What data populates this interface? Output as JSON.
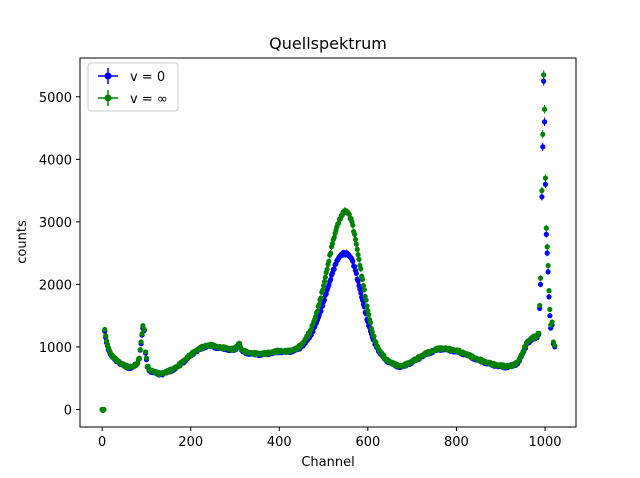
{
  "chart_data": {
    "type": "scatter",
    "title": "Quellspektrum",
    "xlabel": "Channel",
    "ylabel": "counts",
    "xlim": [
      -50,
      1070
    ],
    "ylim": [
      -280,
      5620
    ],
    "xticks": [
      0,
      200,
      400,
      600,
      800,
      1000
    ],
    "yticks": [
      0,
      1000,
      2000,
      3000,
      4000,
      5000
    ],
    "grid": false,
    "legend_position": "top-left",
    "series": [
      {
        "name": "v = 0",
        "color": "#0000ff",
        "points": [
          [
            0,
            0
          ],
          [
            4,
            0
          ],
          [
            6,
            1250
          ],
          [
            8,
            1150
          ],
          [
            12,
            1020
          ],
          [
            16,
            930
          ],
          [
            20,
            870
          ],
          [
            28,
            800
          ],
          [
            36,
            760
          ],
          [
            44,
            720
          ],
          [
            52,
            690
          ],
          [
            60,
            670
          ],
          [
            70,
            680
          ],
          [
            78,
            720
          ],
          [
            84,
            810
          ],
          [
            88,
            1050
          ],
          [
            92,
            1300
          ],
          [
            95,
            1260
          ],
          [
            98,
            900
          ],
          [
            102,
            680
          ],
          [
            108,
            620
          ],
          [
            116,
            600
          ],
          [
            124,
            570
          ],
          [
            132,
            560
          ],
          [
            140,
            580
          ],
          [
            150,
            600
          ],
          [
            160,
            640
          ],
          [
            170,
            680
          ],
          [
            180,
            740
          ],
          [
            190,
            800
          ],
          [
            200,
            870
          ],
          [
            210,
            920
          ],
          [
            220,
            960
          ],
          [
            230,
            1000
          ],
          [
            240,
            1020
          ],
          [
            250,
            1010
          ],
          [
            260,
            990
          ],
          [
            270,
            980
          ],
          [
            280,
            970
          ],
          [
            290,
            950
          ],
          [
            300,
            960
          ],
          [
            310,
            1050
          ],
          [
            315,
            950
          ],
          [
            320,
            920
          ],
          [
            330,
            900
          ],
          [
            340,
            890
          ],
          [
            350,
            880
          ],
          [
            360,
            880
          ],
          [
            370,
            890
          ],
          [
            380,
            900
          ],
          [
            390,
            910
          ],
          [
            400,
            930
          ],
          [
            410,
            920
          ],
          [
            420,
            920
          ],
          [
            430,
            940
          ],
          [
            440,
            960
          ],
          [
            450,
            1000
          ],
          [
            460,
            1080
          ],
          [
            470,
            1180
          ],
          [
            480,
            1320
          ],
          [
            490,
            1500
          ],
          [
            500,
            1720
          ],
          [
            510,
            1950
          ],
          [
            520,
            2180
          ],
          [
            530,
            2380
          ],
          [
            540,
            2480
          ],
          [
            548,
            2500
          ],
          [
            556,
            2480
          ],
          [
            564,
            2400
          ],
          [
            572,
            2220
          ],
          [
            580,
            1980
          ],
          [
            590,
            1680
          ],
          [
            600,
            1400
          ],
          [
            610,
            1160
          ],
          [
            620,
            990
          ],
          [
            630,
            880
          ],
          [
            640,
            800
          ],
          [
            650,
            750
          ],
          [
            660,
            710
          ],
          [
            670,
            690
          ],
          [
            680,
            690
          ],
          [
            690,
            720
          ],
          [
            700,
            760
          ],
          [
            710,
            800
          ],
          [
            720,
            840
          ],
          [
            730,
            880
          ],
          [
            740,
            910
          ],
          [
            750,
            940
          ],
          [
            760,
            960
          ],
          [
            770,
            970
          ],
          [
            780,
            960
          ],
          [
            790,
            940
          ],
          [
            800,
            930
          ],
          [
            810,
            910
          ],
          [
            820,
            880
          ],
          [
            830,
            850
          ],
          [
            840,
            820
          ],
          [
            850,
            790
          ],
          [
            860,
            760
          ],
          [
            870,
            740
          ],
          [
            880,
            720
          ],
          [
            890,
            700
          ],
          [
            900,
            690
          ],
          [
            910,
            680
          ],
          [
            920,
            690
          ],
          [
            930,
            700
          ],
          [
            940,
            760
          ],
          [
            950,
            900
          ],
          [
            960,
            1060
          ],
          [
            970,
            1120
          ],
          [
            980,
            1150
          ],
          [
            986,
            1200
          ],
          [
            990,
            2000
          ],
          [
            993,
            3400
          ],
          [
            995,
            4200
          ],
          [
            997,
            5250
          ],
          [
            999,
            4600
          ],
          [
            1001,
            3600
          ],
          [
            1003,
            2800
          ],
          [
            1005,
            2500
          ],
          [
            1007,
            2200
          ],
          [
            1009,
            1800
          ],
          [
            1011,
            1500
          ],
          [
            1013,
            1300
          ],
          [
            1016,
            1350
          ],
          [
            1019,
            1050
          ],
          [
            1022,
            1000
          ]
        ]
      },
      {
        "name": "v = ∞",
        "color": "#008000",
        "points": [
          [
            0,
            0
          ],
          [
            4,
            0
          ],
          [
            6,
            1280
          ],
          [
            8,
            1180
          ],
          [
            12,
            1040
          ],
          [
            16,
            950
          ],
          [
            20,
            880
          ],
          [
            28,
            810
          ],
          [
            36,
            770
          ],
          [
            44,
            730
          ],
          [
            52,
            700
          ],
          [
            60,
            680
          ],
          [
            70,
            690
          ],
          [
            78,
            730
          ],
          [
            84,
            820
          ],
          [
            88,
            1080
          ],
          [
            92,
            1340
          ],
          [
            95,
            1280
          ],
          [
            98,
            920
          ],
          [
            102,
            690
          ],
          [
            108,
            630
          ],
          [
            116,
            610
          ],
          [
            124,
            580
          ],
          [
            132,
            570
          ],
          [
            140,
            590
          ],
          [
            150,
            610
          ],
          [
            160,
            650
          ],
          [
            170,
            690
          ],
          [
            180,
            750
          ],
          [
            190,
            810
          ],
          [
            200,
            880
          ],
          [
            210,
            930
          ],
          [
            220,
            970
          ],
          [
            230,
            1010
          ],
          [
            240,
            1030
          ],
          [
            250,
            1020
          ],
          [
            260,
            1000
          ],
          [
            270,
            990
          ],
          [
            280,
            980
          ],
          [
            290,
            960
          ],
          [
            300,
            970
          ],
          [
            310,
            1060
          ],
          [
            315,
            960
          ],
          [
            320,
            930
          ],
          [
            330,
            910
          ],
          [
            340,
            900
          ],
          [
            350,
            890
          ],
          [
            360,
            890
          ],
          [
            370,
            900
          ],
          [
            380,
            910
          ],
          [
            390,
            920
          ],
          [
            400,
            940
          ],
          [
            410,
            930
          ],
          [
            420,
            930
          ],
          [
            430,
            950
          ],
          [
            440,
            980
          ],
          [
            450,
            1030
          ],
          [
            460,
            1130
          ],
          [
            470,
            1260
          ],
          [
            480,
            1440
          ],
          [
            490,
            1680
          ],
          [
            500,
            1980
          ],
          [
            510,
            2320
          ],
          [
            520,
            2650
          ],
          [
            530,
            2920
          ],
          [
            540,
            3100
          ],
          [
            548,
            3180
          ],
          [
            556,
            3140
          ],
          [
            564,
            3000
          ],
          [
            572,
            2720
          ],
          [
            580,
            2400
          ],
          [
            590,
            1980
          ],
          [
            600,
            1580
          ],
          [
            610,
            1240
          ],
          [
            620,
            1020
          ],
          [
            630,
            900
          ],
          [
            640,
            810
          ],
          [
            650,
            760
          ],
          [
            660,
            720
          ],
          [
            670,
            700
          ],
          [
            680,
            700
          ],
          [
            690,
            730
          ],
          [
            700,
            770
          ],
          [
            710,
            810
          ],
          [
            720,
            850
          ],
          [
            730,
            890
          ],
          [
            740,
            920
          ],
          [
            750,
            950
          ],
          [
            760,
            970
          ],
          [
            770,
            980
          ],
          [
            780,
            970
          ],
          [
            790,
            950
          ],
          [
            800,
            940
          ],
          [
            810,
            920
          ],
          [
            820,
            890
          ],
          [
            830,
            860
          ],
          [
            840,
            830
          ],
          [
            850,
            800
          ],
          [
            860,
            770
          ],
          [
            870,
            750
          ],
          [
            880,
            730
          ],
          [
            890,
            710
          ],
          [
            900,
            700
          ],
          [
            910,
            690
          ],
          [
            920,
            700
          ],
          [
            930,
            710
          ],
          [
            940,
            770
          ],
          [
            950,
            920
          ],
          [
            960,
            1080
          ],
          [
            970,
            1140
          ],
          [
            980,
            1170
          ],
          [
            986,
            1220
          ],
          [
            990,
            2100
          ],
          [
            993,
            3500
          ],
          [
            995,
            4400
          ],
          [
            997,
            5350
          ],
          [
            999,
            4800
          ],
          [
            1001,
            3700
          ],
          [
            1003,
            2900
          ],
          [
            1005,
            2600
          ],
          [
            1007,
            2300
          ],
          [
            1009,
            1900
          ],
          [
            1011,
            1600
          ],
          [
            1013,
            1350
          ],
          [
            1016,
            1400
          ],
          [
            1019,
            1080
          ],
          [
            1022,
            1020
          ]
        ]
      }
    ]
  }
}
